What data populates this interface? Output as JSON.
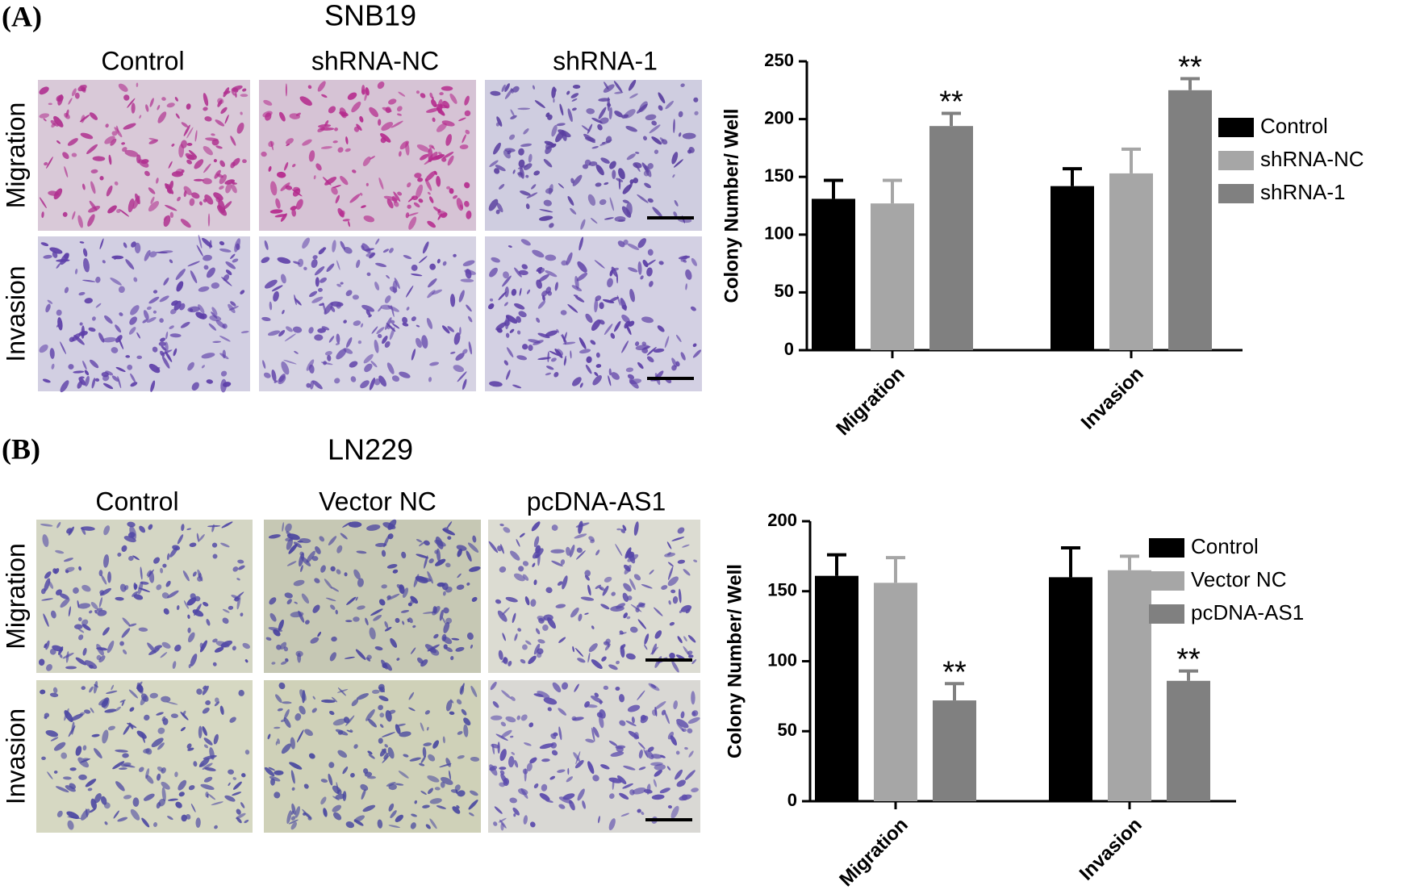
{
  "panels": [
    {
      "label": "(A)",
      "title": "SNB19",
      "columns": [
        "Control",
        "shRNA-NC",
        "shRNA-1"
      ],
      "rows": [
        "Migration",
        "Invasion"
      ]
    },
    {
      "label": "(B)",
      "title": "LN229",
      "columns": [
        "Control",
        "Vector NC",
        "pcDNA-AS1"
      ],
      "rows": [
        "Migration",
        "Invasion"
      ]
    }
  ],
  "chart_data": [
    {
      "type": "bar",
      "ylabel": "Colony Number/ Well",
      "categories": [
        "Migration",
        "Invasion"
      ],
      "ylim": [
        0,
        250
      ],
      "yticks": [
        0,
        50,
        100,
        150,
        200,
        250
      ],
      "series": [
        {
          "name": "Control",
          "color": "#000000",
          "values": [
            131,
            142
          ],
          "errors": [
            16,
            15
          ]
        },
        {
          "name": "shRNA-NC",
          "color": "#a6a6a6",
          "values": [
            127,
            153
          ],
          "errors": [
            20,
            21
          ]
        },
        {
          "name": "shRNA-1",
          "color": "#808080",
          "values": [
            194,
            225
          ],
          "errors": [
            11,
            10
          ],
          "value_annotations": [
            "**",
            "**"
          ]
        }
      ]
    },
    {
      "type": "bar",
      "ylabel": "Colony Number/ Well",
      "categories": [
        "Migration",
        "Invasion"
      ],
      "ylim": [
        0,
        200
      ],
      "yticks": [
        0,
        50,
        100,
        150,
        200
      ],
      "series": [
        {
          "name": "Control",
          "color": "#000000",
          "values": [
            161,
            160
          ],
          "errors": [
            15,
            21
          ]
        },
        {
          "name": "Vector NC",
          "color": "#a6a6a6",
          "values": [
            156,
            165
          ],
          "errors": [
            18,
            10
          ]
        },
        {
          "name": "pcDNA-AS1",
          "color": "#808080",
          "values": [
            72,
            86
          ],
          "errors": [
            12,
            7
          ],
          "value_annotations": [
            "**",
            "**"
          ]
        }
      ]
    }
  ]
}
